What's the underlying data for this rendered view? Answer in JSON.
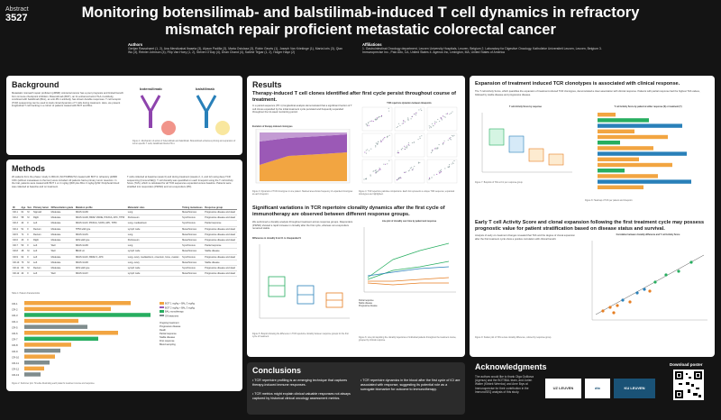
{
  "header": {
    "abstract_label": "Abstract",
    "abstract_number": "3527",
    "title": "Monitoring botensilimab- and balstilimab-induced T cell dynamics in refractory mismatch repair proficient metastatic colorectal cancer",
    "authors_heading": "Authors",
    "authors_text": "Gertjan Rasschaert (1, 2), Ana Mendizabal Ibaseta (3), Alyson Padilla (3), Marta Ostolaza (3), Robin Geurts (1), Joseph Van Kriekinge (1), Marta Ioris (3), Qian Wu (3), Reinier Johnson (4), Filip Van Hoey (1, 2), Steven O'Day (4), Dhan Chand (4), Sabine Tejpar (1, 2), Holger Hayn (2)",
    "affiliations_heading": "Affiliations",
    "affiliations_text": "1. Gastrointestinal Oncology department, Leuven University Hospitals, Leuven, Belgium   2. Laboratory for Digestive Oncology, Katholieke Universiteit Leuven, Leuven, Belgium   3. Immunoprecise Inc., Palo Alto, CA, United States   4. Agenus Inc, Lexington, MA, United States of America"
  },
  "background": {
    "heading": "Background",
    "text": "Metastatic mismatch repair proficient (pMMR) colorectal cancer has a poor prognosis and limited benefit from immune checkpoint inhibition. Botensilimab (BOT), an Fc-enhanced anti-CTLA-4 antibody, combined with balstilimab (BAL), an anti-PD-1 antibody, has shown durable responses. T cell receptor (TCR) sequencing can be used to track clonal dynamics of T cells during treatment. Here, we present longitudinal T cell tracking in a cohort of patients treated with BOT and BAL.",
    "drug1": "botensilimab",
    "drug2": "balstilimab",
    "fig_caption": "Figure 1: Mechanism of action of botensilimab and balstilimab. Botensilimab enhances priming and expansion of tumor-specific T cells; balstilimab blocks PD-1."
  },
  "methods": {
    "heading": "Methods",
    "text_left": "20 patients from the phase I study C-800-01 (NCT03860272) treated with BOT in refractory pMMR CRC (without metastases to the liver) were included. All patients had a primary tumor resection. In the trial, patients were treated with BOT 1 or 2 mg/kg Q6W plus BAL 3 mg/kg Q2W. Peripheral blood was collected at baseline and on treatment.",
    "text_right": "T cells collected at baseline (week 0) and during treatment (weeks 2, 4, and 12) using deep TCR sequencing (ImmunoSEQ). T cell clonality was quantified on each timepoint using the T cell Activity Score (TAS), which is calculated for all TCR sequences expanded versus baseline. Patients were stratified into responders (PR/SD) and non-responders (PD).",
    "table_headers": [
      "ID",
      "Age",
      "Sex",
      "Primary tumor",
      "Differentiation grade",
      "Mutation profile",
      "Metastatic sites",
      "Timing metastases",
      "Response group"
    ],
    "table_rows": [
      [
        "CR-1",
        "61",
        "M",
        "Sigmoid",
        "Moderate",
        "KRAS G13D",
        "Lung",
        "Metachronous",
        "Progressive disease and dead"
      ],
      [
        "CR-2",
        "58",
        "M",
        "Right",
        "Moderate",
        "KRAS G12D, BRAF V600E, PIK3CA, APC, TP53",
        "Peritoneum",
        "Synchronous",
        "Progressive disease and dead"
      ],
      [
        "CR-3",
        "44",
        "F",
        "Left",
        "Moderate",
        "KRAS G12V, PIK3CA, SOX9, APC, TP53",
        "Lung, mediastinum",
        "Synchronous",
        "Partial response"
      ],
      [
        "CR-4",
        "51",
        "F",
        "Rectum",
        "Moderate",
        "TP53 wild type",
        "Lymph node",
        "Metachronous",
        "Progressive disease and dead"
      ],
      [
        "CR-5",
        "71",
        "F",
        "Rectum",
        "Moderate",
        "KRAS G12S",
        "Lung",
        "Metachronous",
        "Progressive disease and dead"
      ],
      [
        "CR-6",
        "43",
        "F",
        "Right",
        "Moderate",
        "RAS wild type",
        "Peritoneum",
        "Metachronous",
        "Progressive disease and dead"
      ],
      [
        "CR-7",
        "50",
        "F",
        "Left",
        "Well",
        "KRAS G13D",
        "Lung",
        "Synchronous",
        "Partial response"
      ],
      [
        "CR-8",
        "48",
        "M",
        "Left",
        "Well",
        "BRAF wt",
        "Lymph node",
        "Metachronous",
        "Stable disease"
      ],
      [
        "CR-9",
        "62",
        "F",
        "Left",
        "Moderate",
        "KRAS G12C, BRAF K, APC",
        "Lung, ovary, mediastinum, omentum, bone, ovarian",
        "Synchronous",
        "Progressive disease and dead"
      ],
      [
        "CR-10",
        "73",
        "M",
        "Left",
        "Moderate",
        "KRAS G12D",
        "Lung, ovary",
        "Metachronous",
        "Stable disease"
      ],
      [
        "CR-11",
        "63",
        "M",
        "Rectum",
        "Moderate",
        "RAS wild type",
        "Lymph node",
        "Synchronous",
        "Progressive disease and dead"
      ],
      [
        "CR-12",
        "44",
        "F",
        "Left",
        "Well",
        "KRAS G12V",
        "Lymph node",
        "Metachronous",
        "Progressive disease and dead"
      ]
    ],
    "table_caption": "Table 1: Patient characteristics",
    "swimmer_caption": "Figure 2: Swimmer plot. Timeline illustrating each patient's treatment course and response.",
    "swimmer_patients": [
      "CR-1",
      "CR-2",
      "CR-3",
      "CR-4",
      "CR-5",
      "CR-6",
      "CR-7",
      "CR-8",
      "CR-9",
      "CR-10",
      "CR-11",
      "CR-12",
      "CR-13"
    ],
    "swimmer_legend": [
      "BOT 1 mg/kg + BAL 3 mg/kg",
      "BOT 2 mg/kg + BAL 3 mg/kg",
      "BAL monotherapy",
      "Off treatment"
    ],
    "swimmer_legend2": [
      "Ongoing treatment",
      "Progressive disease",
      "Death",
      "Partial response",
      "Stable disease",
      "First response",
      "Blood sampling"
    ]
  },
  "results": {
    "heading": "Results",
    "sub1": "Therapy-induced T cell clones identified after first cycle persist throughout course of treatment.",
    "text1": "In a paired-sequence (TP-1) longitudinal analysis demonstrated that a significant fraction of T cell clones expanded by the initial treatment cycle persisted and frequently expanded throughout the 12-week monitoring period.",
    "fig_a_title": "Evolution of therapy-induced clonotypes",
    "fig_b_title": "TCR repertoire dynamics between timepoints",
    "fig3_caption": "Figure 3: Dynamics of TCR clonotypes in one patient. Stacked area shows frequency of expanded clonotypes at each timepoint.",
    "fig4_caption": "Figure 4: TCR repertoire pairwise comparisons. Each dot represents a unique TCR sequence; expanded clonotypes are highlighted.",
    "legend_title": "Legend",
    "legend_items": [
      "Expanded clonotypes",
      "Non-expanded clonotypes"
    ],
    "sub2": "Significant variations in TCR repertoire clonality dynamics after the first cycle of immunotherapy are observed between different response groups.",
    "text2": "We performed a clonality analysis throughout treatment across response groups. Responders (PR/SD) showed a rapid increase in clonality after the first cycle, whereas non-responders remained stable.",
    "fig5_title": "Differences in clonality from C1 to Unexpanded S",
    "fig6_title": "Line plot of clonality over time by patient and response",
    "fig5_caption": "Figure 5: Boxplot showing the difference in TCR repertoire clonality between response groups for the first cycle of treatment.",
    "fig6_caption": "Figure 6: Line plot depicting the clonality trajectories of individual patients throughout the treatment course, grouped by clinical response.",
    "groups": [
      "Partial response",
      "Stable disease",
      "Progressive disease"
    ]
  },
  "right": {
    "sub1": "Expansion of treatment induced TCR clonotypes is associated with clinical response.",
    "text1": "The T cell Activity Score, which quantifies the expansion of treatment-induced TCR clonotypes, demonstrated a clear association with clinical response. Patients with partial response had the highest TAS values, followed by stable disease and progressive disease.",
    "fig7_title": "T cell Activity Score by response",
    "fig8_title": "T cell Activity Score by patient at either response (S) or treatment (T)",
    "fig7_caption": "Figure 7: Boxplots of TAS at C1 per response group.",
    "fig8_caption": "Figure 8: Heatmap of TAS per patient and timepoint.",
    "sub2": "Early T cell Activity Score and clonal expansion following the first treatment cycle may possess prognostic value for patient stratification based on disease status and survival.",
    "text2": "Analysis of early on-treatment changes revealed that TAS and the degree of clonal expansion after the first treatment cycle show a positive correlation with clinical benefit.",
    "fig9_title": "Correlation between clonality difference and T cell Activity Score",
    "fig9_caption": "Figure 9: Scatter plot of TAS versus clonality difference, colored by response group."
  },
  "conclusions": {
    "heading": "Conclusions",
    "left": [
      "TCR repertoire profiling is an emerging technique that captures therapy-induced immune responses.",
      "TCR metrics might explain clinical valuable responses not always captured by historical clinical oncology assessment metrics."
    ],
    "right": [
      "TCR repertoire dynamics in the blood after the first cycle of ICI are associated with response, suggesting its potential role as a surrogate biomarker for outcome to immunotherapy."
    ]
  },
  "acknowledgments": {
    "heading": "Acknowledgments",
    "text": "The authors would like to thank Olga Golikova (Agenus) and the BOT/BAL team, and Jorien Walter (Kliniek Weerloo) and Arne Brys at Immunoprecise for their contribution in the ImmunoSEQ analysis of this study.",
    "logos": [
      "UZ LEUVEN",
      "dtx",
      "KU LEUVEN"
    ],
    "download": "Download poster"
  }
}
